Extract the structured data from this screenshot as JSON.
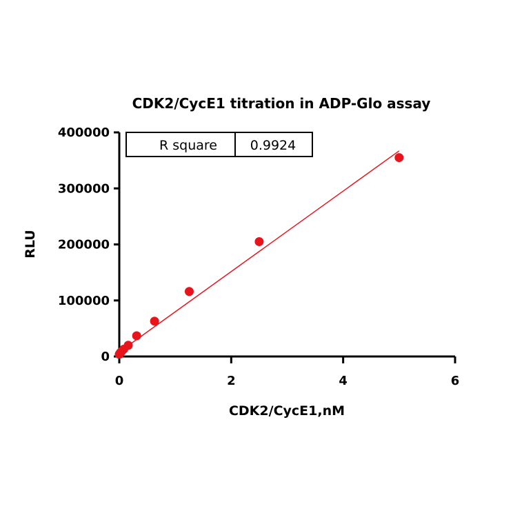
{
  "chart_data": {
    "type": "scatter",
    "title": "CDK2/CycE1 titration in ADP-Glo assay",
    "xlabel": "CDK2/CycE1,nM",
    "ylabel": "RLU",
    "xlim": [
      0,
      6
    ],
    "ylim": [
      0,
      400000
    ],
    "xticks": [
      0,
      2,
      4,
      6
    ],
    "yticks": [
      0,
      100000,
      200000,
      300000,
      400000
    ],
    "xtick_labels": [
      "0",
      "2",
      "4",
      "6"
    ],
    "ytick_labels": [
      "0",
      "100000",
      "200000",
      "300000",
      "400000"
    ],
    "series": [
      {
        "color": "#e8141c",
        "points": [
          {
            "x": 0.0,
            "y": 4000
          },
          {
            "x": 0.02,
            "y": 7000
          },
          {
            "x": 0.04,
            "y": 9000
          },
          {
            "x": 0.08,
            "y": 13000
          },
          {
            "x": 0.16,
            "y": 20000
          },
          {
            "x": 0.31,
            "y": 37000
          },
          {
            "x": 0.63,
            "y": 63000
          },
          {
            "x": 1.25,
            "y": 116000
          },
          {
            "x": 2.5,
            "y": 205000
          },
          {
            "x": 5.0,
            "y": 355000
          }
        ]
      }
    ],
    "fit_line": {
      "color": "#e8141c",
      "x": [
        0,
        5.0
      ],
      "y": [
        8000,
        367000
      ]
    },
    "stats_table": {
      "label": "R square",
      "value": "0.9924"
    },
    "grid": false
  }
}
